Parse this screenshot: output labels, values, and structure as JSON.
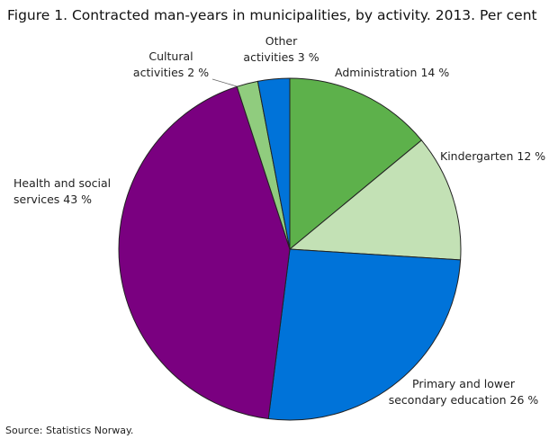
{
  "chart_data": {
    "type": "pie",
    "title": "Figure 1. Contracted man-years in municipalities, by activity. 2013. Per cent",
    "source": "Source: Statistics Norway.",
    "categories": [
      "Administration",
      "Kindergarten",
      "Primary and lower secondary education",
      "Health and social services",
      "Cultural activities",
      "Other activities"
    ],
    "values": [
      14,
      12,
      26,
      43,
      2,
      3
    ],
    "value_labels": [
      "14 %",
      "12 %",
      "26 %",
      "43 %",
      "2 %",
      "3 %"
    ],
    "colors": [
      "#5db14b",
      "#c3e1b5",
      "#0073d9",
      "#7a0080",
      "#90cc7e",
      "#0073d9"
    ]
  }
}
